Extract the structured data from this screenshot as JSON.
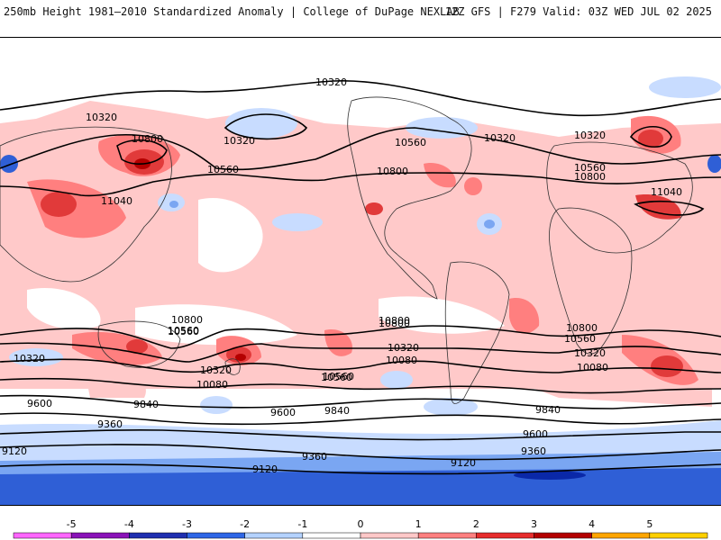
{
  "header": {
    "title": "250mb Height 1981–2010 Standardized Anomaly | College of DuPage NEXLAB",
    "run_info": "12Z GFS | F279 Valid: 03Z WED JUL 02 2025"
  },
  "map": {
    "variable": "250mb geopotential height",
    "shading": "standardized anomaly",
    "contour_labels": [
      "10320",
      "10320",
      "10800",
      "10320",
      "10560",
      "10560",
      "10800",
      "10320",
      "10320",
      "10560",
      "10800",
      "11040",
      "11040",
      "10800",
      "10560",
      "10320",
      "10800",
      "10560",
      "10800",
      "10560",
      "10320",
      "10080",
      "10800",
      "10560",
      "10320",
      "10080",
      "10320",
      "10080",
      "10560",
      "9600",
      "9840",
      "9840",
      "9600",
      "9840",
      "9360",
      "9600",
      "9120",
      "9360",
      "9360",
      "9120",
      "9120"
    ],
    "colors": {
      "pos1": "#ffc9c9",
      "pos2": "#ff7f7f",
      "pos3": "#e13a3a",
      "pos4": "#b40000",
      "neg1": "#c8dcff",
      "neg2": "#7aa6f2",
      "neg3": "#2f5fd6",
      "neg4": "#0a28a8"
    }
  },
  "colorbar": {
    "ticks": [
      "-5",
      "-4",
      "-3",
      "-2",
      "-1",
      "0",
      "1",
      "2",
      "3",
      "4",
      "5"
    ],
    "colors": [
      "#ff66ff",
      "#8a12b8",
      "#1f2fb0",
      "#2e66e6",
      "#b4d2ff",
      "#ffffff",
      "#ffc8c8",
      "#ff8080",
      "#e62c2c",
      "#b30000",
      "#ffa500",
      "#ffd000"
    ]
  }
}
